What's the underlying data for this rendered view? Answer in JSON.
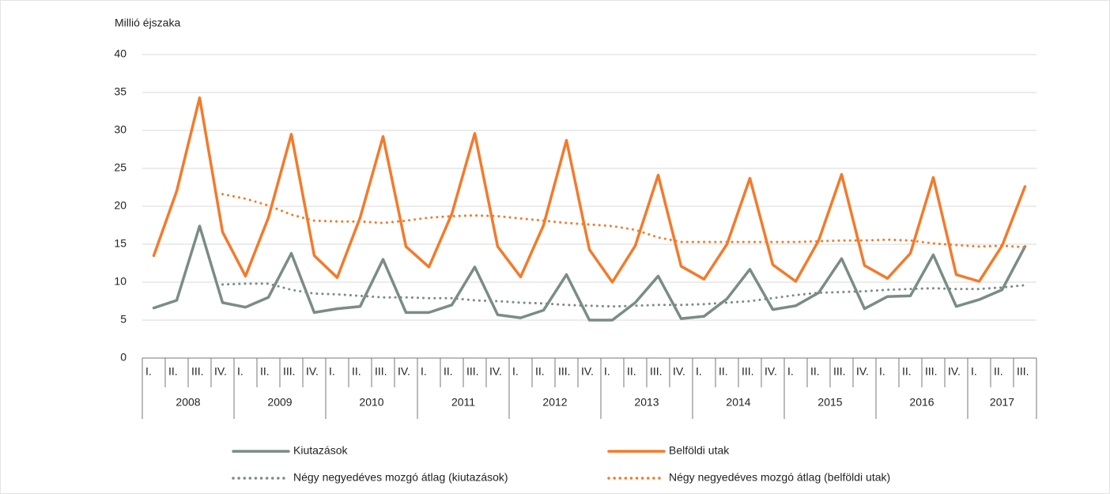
{
  "chart_data": {
    "type": "line",
    "y_axis_label": "Millió éjszaka",
    "categories": [
      "I.",
      "II.",
      "III.",
      "IV.",
      "I.",
      "II.",
      "III.",
      "IV.",
      "I.",
      "II.",
      "III.",
      "IV.",
      "I.",
      "II.",
      "III.",
      "IV.",
      "I.",
      "II.",
      "III.",
      "IV.",
      "I.",
      "II.",
      "III.",
      "IV.",
      "I.",
      "II.",
      "III.",
      "IV.",
      "I.",
      "II.",
      "III.",
      "IV.",
      "I.",
      "II.",
      "III.",
      "IV.",
      "I.",
      "II.",
      "III."
    ],
    "groups": [
      {
        "label": "2008",
        "count": 4
      },
      {
        "label": "2009",
        "count": 4
      },
      {
        "label": "2010",
        "count": 4
      },
      {
        "label": "2011",
        "count": 4
      },
      {
        "label": "2012",
        "count": 4
      },
      {
        "label": "2013",
        "count": 4
      },
      {
        "label": "2014",
        "count": 4
      },
      {
        "label": "2015",
        "count": 4
      },
      {
        "label": "2016",
        "count": 4
      },
      {
        "label": "2017",
        "count": 3
      }
    ],
    "ylim": [
      0,
      40
    ],
    "yticks": [
      0,
      5,
      10,
      15,
      20,
      25,
      30,
      35,
      40
    ],
    "grid": true,
    "series": [
      {
        "name": "Kiutazások",
        "color": "#7a8c86",
        "style": "solid",
        "values": [
          6.6,
          7.6,
          17.4,
          7.3,
          6.7,
          8.0,
          13.8,
          6.0,
          6.5,
          6.8,
          13.0,
          6.0,
          6.0,
          7.0,
          12.0,
          5.7,
          5.3,
          6.3,
          11.0,
          5.0,
          5.0,
          7.3,
          10.8,
          5.2,
          5.5,
          7.8,
          11.7,
          6.4,
          6.9,
          8.6,
          13.1,
          6.5,
          8.1,
          8.2,
          13.6,
          6.8,
          7.7,
          9.0,
          14.7
        ]
      },
      {
        "name": "Belföldi utak",
        "color": "#f47a2a",
        "style": "solid",
        "values": [
          13.5,
          22.0,
          34.3,
          16.6,
          10.8,
          18.5,
          29.5,
          13.5,
          10.6,
          18.5,
          29.2,
          14.7,
          12.0,
          19.0,
          29.6,
          14.7,
          10.7,
          17.5,
          28.7,
          14.3,
          10.0,
          14.8,
          24.1,
          12.1,
          10.4,
          15.0,
          23.7,
          12.3,
          10.1,
          15.5,
          24.2,
          12.2,
          10.5,
          13.8,
          23.8,
          11.0,
          10.1,
          14.8,
          22.6
        ]
      },
      {
        "name": "Négy negyedéves mozgó átlag (kiutazások)",
        "color": "#7a8c86",
        "style": "dotted",
        "values": [
          null,
          null,
          null,
          9.7,
          9.8,
          9.8,
          9.0,
          8.5,
          8.4,
          8.2,
          8.0,
          8.0,
          7.9,
          7.9,
          7.6,
          7.5,
          7.3,
          7.2,
          7.0,
          6.9,
          6.8,
          6.9,
          7.0,
          7.0,
          7.1,
          7.3,
          7.5,
          7.9,
          8.3,
          8.6,
          8.7,
          8.8,
          9.0,
          9.1,
          9.2,
          9.1,
          9.1,
          9.3,
          9.6
        ]
      },
      {
        "name": "Négy negyedéves mozgó átlag (belföldi utak)",
        "color": "#f47a2a",
        "style": "dotted",
        "values": [
          null,
          null,
          null,
          21.6,
          21.0,
          20.1,
          18.9,
          18.1,
          18.0,
          18.0,
          17.8,
          18.1,
          18.5,
          18.7,
          18.8,
          18.7,
          18.4,
          18.1,
          17.8,
          17.6,
          17.4,
          16.9,
          15.9,
          15.3,
          15.3,
          15.3,
          15.3,
          15.3,
          15.3,
          15.4,
          15.5,
          15.5,
          15.6,
          15.5,
          15.1,
          14.9,
          14.7,
          14.8,
          14.6
        ]
      }
    ]
  }
}
